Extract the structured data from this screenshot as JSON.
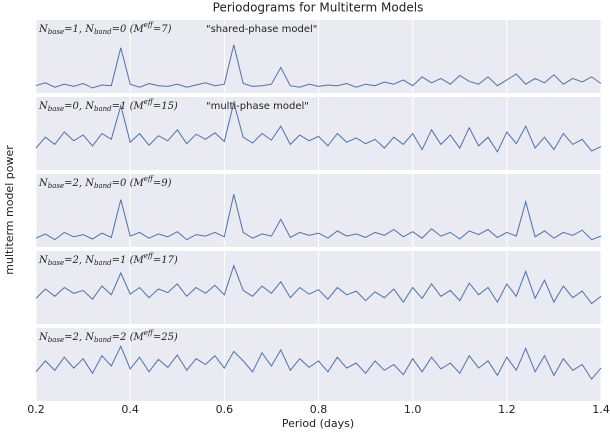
{
  "chart_data": {
    "type": "line",
    "title": "Periodograms for Multiterm Models",
    "xlabel": "Period (days)",
    "ylabel": "multiterm model power",
    "xlim": [
      0.2,
      1.4
    ],
    "xticks": [
      0.2,
      0.4,
      0.6,
      0.8,
      {
        "value": 1,
        "label": "1.0"
      },
      1.2,
      1.4
    ],
    "ylim": [
      0,
      1
    ],
    "grid": true,
    "x": [
      0.2,
      0.22,
      0.24,
      0.26,
      0.28,
      0.3,
      0.32,
      0.34,
      0.36,
      0.38,
      0.4,
      0.42,
      0.44,
      0.46,
      0.48,
      0.5,
      0.52,
      0.54,
      0.56,
      0.58,
      0.6,
      0.62,
      0.64,
      0.66,
      0.68,
      0.7,
      0.72,
      0.74,
      0.76,
      0.78,
      0.8,
      0.82,
      0.84,
      0.86,
      0.88,
      0.9,
      0.92,
      0.94,
      0.96,
      0.98,
      1,
      1.02,
      1.04,
      1.06,
      1.08,
      1.1,
      1.12,
      1.14,
      1.16,
      1.18,
      1.2,
      1.22,
      1.24,
      1.26,
      1.28,
      1.3,
      1.32,
      1.34,
      1.36,
      1.38,
      1.4
    ],
    "panels": [
      {
        "color": "#4c72b0",
        "label": [
          {
            "text": "N"
          },
          {
            "sub": "base"
          },
          {
            "text": "=1, N"
          },
          {
            "sub": "band"
          },
          {
            "text": "=0  (M"
          },
          {
            "sup": "eff"
          },
          {
            "text": "=7)"
          }
        ],
        "annotation": "\"shared-phase model\"",
        "values": [
          0.1,
          0.14,
          0.08,
          0.12,
          0.09,
          0.13,
          0.07,
          0.11,
          0.1,
          0.62,
          0.12,
          0.08,
          0.13,
          0.1,
          0.09,
          0.12,
          0.08,
          0.11,
          0.14,
          0.1,
          0.12,
          0.66,
          0.13,
          0.09,
          0.1,
          0.12,
          0.35,
          0.1,
          0.08,
          0.12,
          0.09,
          0.11,
          0.1,
          0.13,
          0.08,
          0.12,
          0.1,
          0.15,
          0.12,
          0.18,
          0.1,
          0.22,
          0.14,
          0.2,
          0.12,
          0.24,
          0.16,
          0.12,
          0.22,
          0.1,
          0.18,
          0.26,
          0.12,
          0.2,
          0.14,
          0.25,
          0.12,
          0.2,
          0.15,
          0.22,
          0.13
        ]
      },
      {
        "color": "#4c72b0",
        "label": [
          {
            "text": "N"
          },
          {
            "sub": "base"
          },
          {
            "text": "=0, N"
          },
          {
            "sub": "band"
          },
          {
            "text": "=1  (M"
          },
          {
            "sup": "eff"
          },
          {
            "text": "=15)"
          }
        ],
        "annotation": "\"multi-phase model\"",
        "values": [
          0.3,
          0.45,
          0.35,
          0.52,
          0.4,
          0.48,
          0.33,
          0.5,
          0.42,
          0.88,
          0.38,
          0.5,
          0.34,
          0.47,
          0.4,
          0.55,
          0.36,
          0.49,
          0.42,
          0.51,
          0.39,
          0.92,
          0.45,
          0.37,
          0.5,
          0.41,
          0.6,
          0.35,
          0.48,
          0.4,
          0.46,
          0.33,
          0.5,
          0.38,
          0.44,
          0.36,
          0.42,
          0.3,
          0.45,
          0.35,
          0.5,
          0.28,
          0.55,
          0.35,
          0.48,
          0.3,
          0.58,
          0.33,
          0.45,
          0.25,
          0.52,
          0.36,
          0.6,
          0.3,
          0.45,
          0.28,
          0.5,
          0.35,
          0.42,
          0.26,
          0.32
        ]
      },
      {
        "color": "#4c72b0",
        "label": [
          {
            "text": "N"
          },
          {
            "sub": "base"
          },
          {
            "text": "=2, N"
          },
          {
            "sub": "band"
          },
          {
            "text": "=0  (M"
          },
          {
            "sup": "eff"
          },
          {
            "text": "=9)"
          }
        ],
        "values": [
          0.12,
          0.18,
          0.1,
          0.2,
          0.14,
          0.17,
          0.11,
          0.19,
          0.13,
          0.65,
          0.15,
          0.2,
          0.12,
          0.18,
          0.14,
          0.21,
          0.1,
          0.17,
          0.15,
          0.2,
          0.14,
          0.72,
          0.2,
          0.12,
          0.18,
          0.15,
          0.38,
          0.13,
          0.2,
          0.16,
          0.19,
          0.12,
          0.22,
          0.15,
          0.18,
          0.13,
          0.2,
          0.16,
          0.24,
          0.14,
          0.21,
          0.12,
          0.25,
          0.15,
          0.2,
          0.11,
          0.22,
          0.17,
          0.24,
          0.13,
          0.2,
          0.15,
          0.62,
          0.14,
          0.22,
          0.12,
          0.2,
          0.16,
          0.23,
          0.1,
          0.15
        ]
      },
      {
        "color": "#4c72b0",
        "label": [
          {
            "text": "N"
          },
          {
            "sub": "base"
          },
          {
            "text": "=2, N"
          },
          {
            "sub": "band"
          },
          {
            "text": "=1  (M"
          },
          {
            "sup": "eff"
          },
          {
            "text": "=17)"
          }
        ],
        "values": [
          0.35,
          0.48,
          0.38,
          0.5,
          0.42,
          0.46,
          0.34,
          0.52,
          0.4,
          0.7,
          0.41,
          0.5,
          0.36,
          0.48,
          0.43,
          0.55,
          0.38,
          0.5,
          0.42,
          0.53,
          0.4,
          0.8,
          0.46,
          0.38,
          0.52,
          0.42,
          0.58,
          0.36,
          0.5,
          0.41,
          0.47,
          0.34,
          0.5,
          0.4,
          0.45,
          0.32,
          0.44,
          0.36,
          0.48,
          0.3,
          0.5,
          0.35,
          0.55,
          0.38,
          0.46,
          0.32,
          0.56,
          0.4,
          0.5,
          0.3,
          0.55,
          0.38,
          0.72,
          0.35,
          0.6,
          0.3,
          0.52,
          0.36,
          0.45,
          0.28,
          0.38
        ]
      },
      {
        "color": "#4c72b0",
        "label": [
          {
            "text": "N"
          },
          {
            "sub": "base"
          },
          {
            "text": "=2, N"
          },
          {
            "sub": "band"
          },
          {
            "text": "=2  (M"
          },
          {
            "sup": "eff"
          },
          {
            "text": "=25)"
          }
        ],
        "values": [
          0.4,
          0.55,
          0.42,
          0.6,
          0.45,
          0.58,
          0.38,
          0.62,
          0.48,
          0.75,
          0.44,
          0.6,
          0.4,
          0.57,
          0.46,
          0.63,
          0.42,
          0.58,
          0.5,
          0.62,
          0.45,
          0.68,
          0.55,
          0.4,
          0.66,
          0.48,
          0.7,
          0.42,
          0.58,
          0.46,
          0.55,
          0.4,
          0.6,
          0.45,
          0.52,
          0.38,
          0.55,
          0.42,
          0.5,
          0.36,
          0.58,
          0.4,
          0.6,
          0.44,
          0.52,
          0.38,
          0.62,
          0.45,
          0.55,
          0.35,
          0.6,
          0.42,
          0.72,
          0.4,
          0.62,
          0.35,
          0.58,
          0.42,
          0.5,
          0.3,
          0.45
        ]
      }
    ]
  }
}
